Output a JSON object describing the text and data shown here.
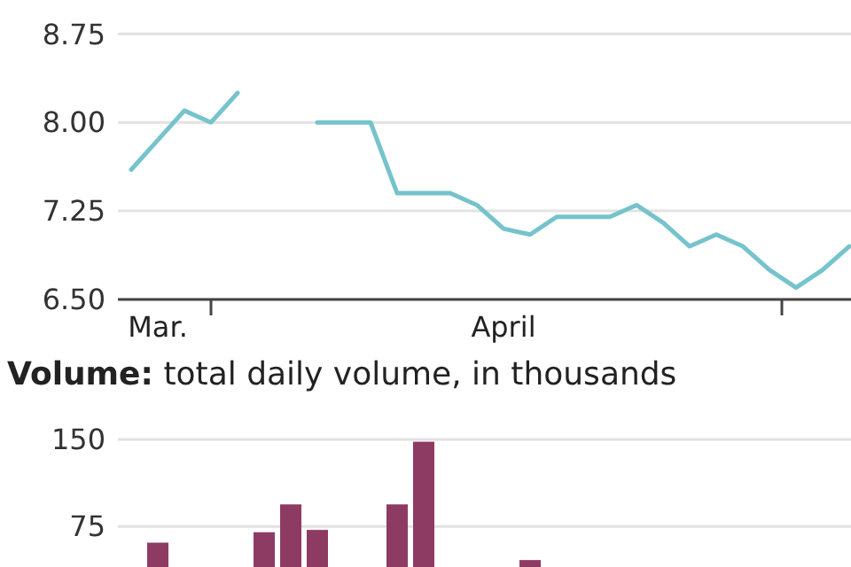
{
  "chart_data": [
    {
      "type": "line",
      "categories": [
        null,
        "Mar.",
        null,
        null,
        null,
        null,
        null,
        null,
        null,
        null,
        null,
        null,
        null,
        null,
        "April",
        null,
        null,
        null,
        null,
        null,
        null,
        null,
        null,
        null,
        null,
        null,
        null,
        null
      ],
      "values": [
        7.6,
        7.85,
        8.1,
        8.0,
        8.25,
        null,
        null,
        8.0,
        8.0,
        8.0,
        7.4,
        7.4,
        7.4,
        7.3,
        7.1,
        7.05,
        7.2,
        7.2,
        7.2,
        7.3,
        7.15,
        6.95,
        7.05,
        6.95,
        6.75,
        6.6,
        6.75,
        6.95
      ],
      "color": "#76c3cc",
      "ylim": [
        6.5,
        9.0
      ],
      "yticks": [
        {
          "value": 6.5,
          "label": "6.50"
        },
        {
          "value": 7.25,
          "label": "7.25"
        },
        {
          "value": 8,
          "label": "8.00"
        },
        {
          "value": 8.75,
          "label": "8.75"
        }
      ],
      "grid": "y"
    },
    {
      "type": "bar",
      "title": "Volume:",
      "subtitle": "total daily volume, in thousands",
      "categories": [
        null,
        null,
        null,
        null,
        null,
        null,
        null,
        null,
        null,
        null,
        null,
        null,
        null,
        null,
        null,
        null,
        null,
        null,
        null,
        null,
        null,
        null,
        null,
        null,
        null,
        null,
        null,
        null
      ],
      "values": [
        null,
        61,
        null,
        null,
        null,
        70,
        94,
        72,
        null,
        null,
        94,
        148,
        null,
        null,
        null,
        46,
        null,
        null,
        null,
        null,
        null,
        null,
        null,
        null,
        null,
        null,
        null,
        null
      ],
      "color": "#8e3b64",
      "ylim": [
        40,
        150
      ],
      "yticks": [
        75,
        150
      ],
      "grid": "y"
    }
  ]
}
